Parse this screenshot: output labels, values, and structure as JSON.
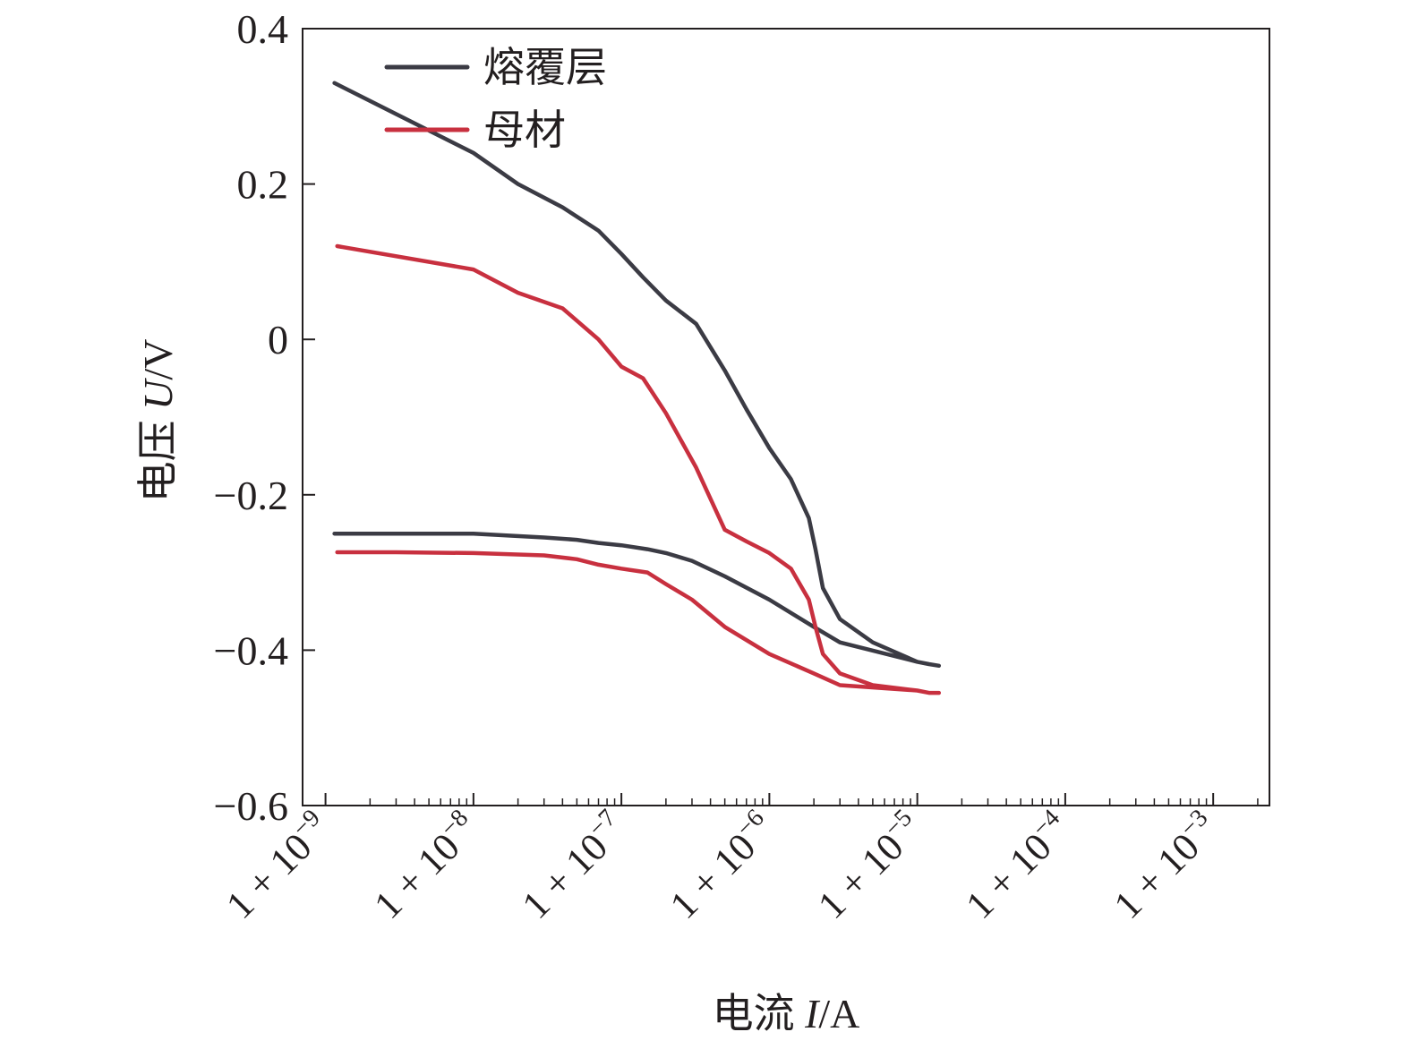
{
  "chart_data": {
    "type": "line",
    "title": "",
    "xlabel": {
      "prefix": "电流 ",
      "var": "I",
      "suffix": "/A"
    },
    "ylabel": {
      "prefix": "电压 ",
      "var": "U",
      "suffix": "/V"
    },
    "xscale": "log",
    "xlim": [
      7e-10,
      0.0024
    ],
    "ylim": [
      -0.6,
      0.4
    ],
    "yticks": [
      {
        "value": 0.4,
        "label": "0.4"
      },
      {
        "value": 0.2,
        "label": "0.2"
      },
      {
        "value": 0,
        "label": "0"
      },
      {
        "value": -0.2,
        "label": "−0.2"
      },
      {
        "value": -0.4,
        "label": "−0.4"
      },
      {
        "value": -0.6,
        "label": "−0.6"
      }
    ],
    "xticks": [
      {
        "value": 1e-09,
        "base": "1 + 10",
        "exp": "−9"
      },
      {
        "value": 1e-08,
        "base": "1 + 10",
        "exp": "−8"
      },
      {
        "value": 1e-07,
        "base": "1 + 10",
        "exp": "−7"
      },
      {
        "value": 1e-06,
        "base": "1 + 10",
        "exp": "−6"
      },
      {
        "value": 1e-05,
        "base": "1 + 10",
        "exp": "−5"
      },
      {
        "value": 0.0001,
        "base": "1 + 10",
        "exp": "−4"
      },
      {
        "value": 0.001,
        "base": "1 + 10",
        "exp": "−3"
      }
    ],
    "legend": {
      "position": "top-left"
    },
    "series": [
      {
        "name": "熔覆层",
        "color": "#3b3b44",
        "x": [
          1.15e-09,
          3e-09,
          1e-08,
          3e-08,
          5e-08,
          7e-08,
          1e-07,
          1.5e-07,
          2e-07,
          3e-07,
          5e-07,
          1e-06,
          2e-06,
          3e-06,
          1e-05,
          1.2e-05,
          1.4e-05,
          1.2e-05,
          1e-05,
          5e-06,
          3e-06,
          2.3e-06,
          2.05e-06,
          1.85e-06,
          1.4e-06,
          1e-06,
          7e-07,
          5e-07,
          3.2e-07,
          2e-07,
          1.4e-07,
          1e-07,
          7e-08,
          4e-08,
          2e-08,
          1e-08,
          1.15e-09
        ],
        "y": [
          -0.25,
          -0.25,
          -0.25,
          -0.255,
          -0.258,
          -0.262,
          -0.265,
          -0.27,
          -0.275,
          -0.285,
          -0.305,
          -0.335,
          -0.37,
          -0.39,
          -0.415,
          -0.418,
          -0.42,
          -0.418,
          -0.415,
          -0.39,
          -0.36,
          -0.32,
          -0.27,
          -0.23,
          -0.18,
          -0.14,
          -0.09,
          -0.04,
          0.02,
          0.05,
          0.08,
          0.11,
          0.14,
          0.17,
          0.2,
          0.24,
          0.33
        ]
      },
      {
        "name": "母材",
        "color": "#c8303f",
        "x": [
          1.2e-09,
          3e-09,
          1e-08,
          3e-08,
          5e-08,
          7e-08,
          1e-07,
          1.5e-07,
          2e-07,
          3e-07,
          5e-07,
          1e-06,
          2e-06,
          3e-06,
          1e-05,
          1.2e-05,
          1.4e-05,
          1.2e-05,
          1e-05,
          5e-06,
          3e-06,
          2.3e-06,
          2.05e-06,
          1.85e-06,
          1.4e-06,
          1e-06,
          7e-07,
          5e-07,
          3.2e-07,
          2e-07,
          1.4e-07,
          1e-07,
          7e-08,
          4e-08,
          2e-08,
          1e-08,
          1.2e-09
        ],
        "y": [
          -0.274,
          -0.274,
          -0.275,
          -0.278,
          -0.283,
          -0.29,
          -0.295,
          -0.3,
          -0.315,
          -0.335,
          -0.37,
          -0.405,
          -0.43,
          -0.445,
          -0.452,
          -0.455,
          -0.455,
          -0.455,
          -0.452,
          -0.445,
          -0.43,
          -0.405,
          -0.37,
          -0.335,
          -0.295,
          -0.275,
          -0.26,
          -0.245,
          -0.165,
          -0.095,
          -0.05,
          -0.035,
          0,
          0.04,
          0.06,
          0.09,
          0.12
        ]
      }
    ]
  }
}
